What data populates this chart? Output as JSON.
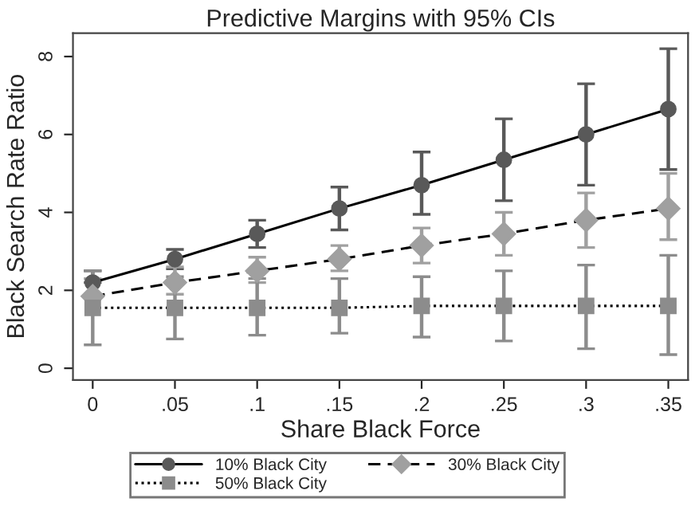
{
  "chart_data": {
    "type": "line",
    "title": "Predictive Margins with 95% CIs",
    "xlabel": "Share Black Force",
    "ylabel": "Black Search Rate Ratio",
    "x": [
      0,
      0.05,
      0.1,
      0.15,
      0.2,
      0.25,
      0.3,
      0.35
    ],
    "series": [
      {
        "name": "10% Black City",
        "color": "#595959",
        "marker": "circle",
        "line_style": "solid",
        "values": [
          2.2,
          2.8,
          3.45,
          4.1,
          4.7,
          5.35,
          6.0,
          6.65
        ],
        "errors": [
          [
            2.2,
            2.5
          ],
          [
            2.55,
            3.05
          ],
          [
            3.1,
            3.8
          ],
          [
            3.55,
            4.65
          ],
          [
            3.95,
            5.55
          ],
          [
            4.3,
            6.4
          ],
          [
            4.7,
            7.3
          ],
          [
            5.1,
            8.2
          ]
        ]
      },
      {
        "name": "30% Black City",
        "color": "#a0a0a0",
        "marker": "diamond",
        "line_style": "dashed",
        "values": [
          1.85,
          2.2,
          2.5,
          2.8,
          3.15,
          3.45,
          3.8,
          4.1
        ],
        "errors": [
          [
            1.85,
            2.3
          ],
          [
            1.9,
            2.6
          ],
          [
            2.2,
            2.85
          ],
          [
            2.5,
            3.15
          ],
          [
            2.7,
            3.6
          ],
          [
            2.9,
            4.0
          ],
          [
            3.1,
            4.5
          ],
          [
            3.3,
            5.0
          ]
        ]
      },
      {
        "name": "50% Black City",
        "color": "#8c8c8c",
        "marker": "square",
        "line_style": "dotted",
        "values": [
          1.55,
          1.55,
          1.55,
          1.55,
          1.6,
          1.6,
          1.6,
          1.6
        ],
        "errors": [
          [
            0.6,
            2.5
          ],
          [
            0.75,
            2.35
          ],
          [
            0.85,
            2.3
          ],
          [
            0.9,
            2.3
          ],
          [
            0.8,
            2.35
          ],
          [
            0.7,
            2.5
          ],
          [
            0.5,
            2.65
          ],
          [
            0.35,
            2.9
          ]
        ]
      }
    ],
    "xlim": [
      -0.012,
      0.362
    ],
    "ylim": [
      -0.3,
      8.6
    ],
    "xticks": [
      {
        "value": 0,
        "label": "0"
      },
      {
        "value": 0.05,
        "label": ".05"
      },
      {
        "value": 0.1,
        "label": ".1"
      },
      {
        "value": 0.15,
        "label": ".15"
      },
      {
        "value": 0.2,
        "label": ".2"
      },
      {
        "value": 0.25,
        "label": ".25"
      },
      {
        "value": 0.3,
        "label": ".3"
      },
      {
        "value": 0.35,
        "label": ".35"
      }
    ],
    "yticks": [
      0,
      2,
      4,
      6,
      8
    ],
    "grid": false,
    "legend": "bottom"
  }
}
